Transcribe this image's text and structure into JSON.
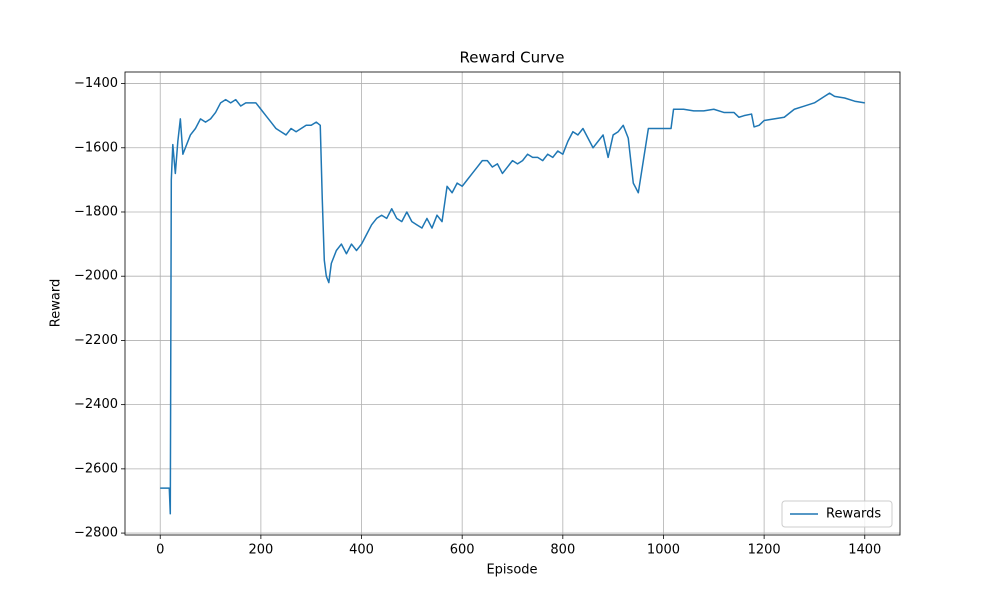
{
  "chart_data": {
    "type": "line",
    "title": "Reward Curve",
    "x_label": "Episode",
    "y_label": "Reward",
    "x": [
      0,
      10,
      18,
      20,
      22,
      25,
      30,
      35,
      40,
      45,
      50,
      60,
      70,
      80,
      90,
      100,
      110,
      120,
      130,
      140,
      150,
      160,
      170,
      180,
      190,
      200,
      210,
      220,
      230,
      240,
      250,
      260,
      270,
      280,
      290,
      300,
      310,
      318,
      322,
      326,
      330,
      335,
      340,
      350,
      360,
      370,
      380,
      390,
      400,
      410,
      420,
      430,
      440,
      450,
      460,
      470,
      480,
      490,
      500,
      510,
      520,
      530,
      540,
      550,
      560,
      570,
      580,
      590,
      600,
      610,
      620,
      630,
      640,
      650,
      660,
      670,
      680,
      690,
      700,
      710,
      720,
      730,
      740,
      750,
      760,
      770,
      780,
      790,
      800,
      810,
      820,
      830,
      840,
      850,
      860,
      870,
      880,
      890,
      900,
      910,
      920,
      930,
      940,
      950,
      960,
      970,
      980,
      990,
      1000,
      1015,
      1020,
      1040,
      1060,
      1080,
      1100,
      1120,
      1140,
      1150,
      1160,
      1175,
      1180,
      1190,
      1200,
      1220,
      1240,
      1260,
      1280,
      1300,
      1320,
      1330,
      1340,
      1360,
      1380,
      1400
    ],
    "series": [
      {
        "name": "Rewards",
        "color": "#1f77b4",
        "values": [
          -2660,
          -2660,
          -2660,
          -2740,
          -1700,
          -1590,
          -1680,
          -1580,
          -1510,
          -1620,
          -1600,
          -1560,
          -1540,
          -1510,
          -1520,
          -1510,
          -1490,
          -1460,
          -1450,
          -1460,
          -1450,
          -1470,
          -1460,
          -1460,
          -1460,
          -1480,
          -1500,
          -1520,
          -1540,
          -1550,
          -1560,
          -1540,
          -1550,
          -1540,
          -1530,
          -1530,
          -1520,
          -1530,
          -1760,
          -1950,
          -2000,
          -2020,
          -1960,
          -1920,
          -1900,
          -1930,
          -1900,
          -1920,
          -1900,
          -1870,
          -1840,
          -1820,
          -1810,
          -1820,
          -1790,
          -1820,
          -1830,
          -1800,
          -1830,
          -1840,
          -1850,
          -1820,
          -1850,
          -1810,
          -1830,
          -1720,
          -1740,
          -1710,
          -1720,
          -1700,
          -1680,
          -1660,
          -1640,
          -1640,
          -1660,
          -1650,
          -1680,
          -1660,
          -1640,
          -1650,
          -1640,
          -1620,
          -1630,
          -1630,
          -1640,
          -1620,
          -1630,
          -1610,
          -1620,
          -1580,
          -1550,
          -1560,
          -1540,
          -1570,
          -1600,
          -1580,
          -1560,
          -1630,
          -1560,
          -1550,
          -1530,
          -1570,
          -1710,
          -1740,
          -1640,
          -1540,
          -1540,
          -1540,
          -1540,
          -1540,
          -1480,
          -1480,
          -1485,
          -1485,
          -1480,
          -1490,
          -1490,
          -1505,
          -1500,
          -1495,
          -1535,
          -1530,
          -1515,
          -1510,
          -1505,
          -1480,
          -1470,
          -1460,
          -1440,
          -1430,
          -1440,
          -1445,
          -1455,
          -1460
        ]
      }
    ],
    "xlim": [
      -70,
      1470
    ],
    "ylim": [
      -2806,
      -1364
    ],
    "xticks": [
      0,
      200,
      400,
      600,
      800,
      1000,
      1200,
      1400
    ],
    "yticks": [
      {
        "value": -2800,
        "label": "−2800"
      },
      {
        "value": -2600,
        "label": "−2600"
      },
      {
        "value": -2400,
        "label": "−2400"
      },
      {
        "value": -2200,
        "label": "−2200"
      },
      {
        "value": -2000,
        "label": "−2000"
      },
      {
        "value": -1800,
        "label": "−1800"
      },
      {
        "value": -1600,
        "label": "−1600"
      },
      {
        "value": -1400,
        "label": "−1400"
      }
    ],
    "grid": true,
    "legend": "lower right"
  }
}
